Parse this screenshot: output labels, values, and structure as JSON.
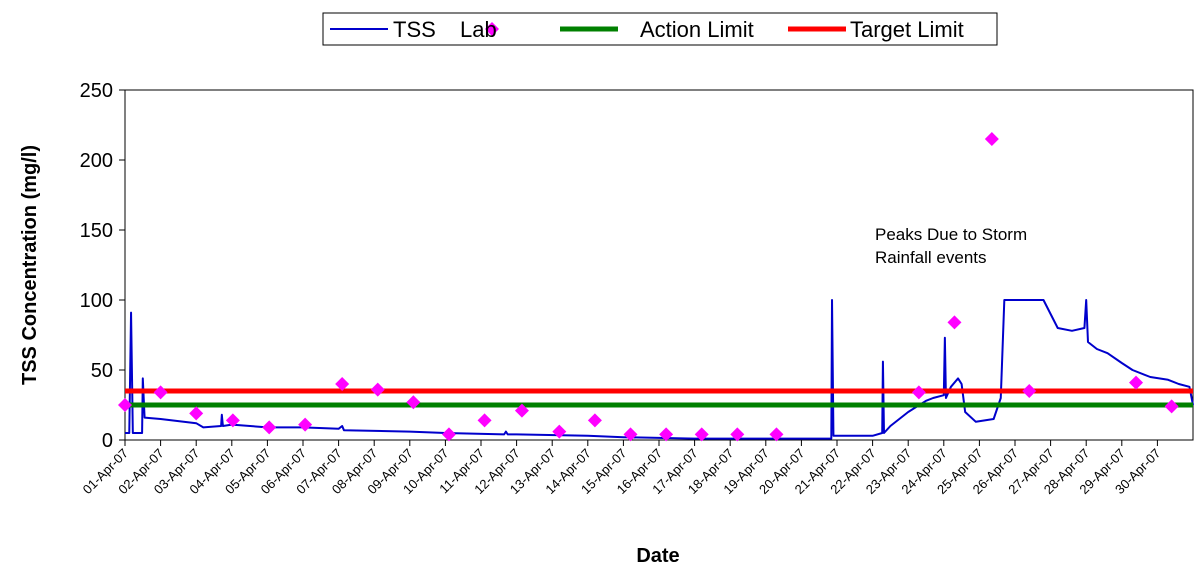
{
  "chart_data": {
    "type": "line",
    "ylabel": "TSS Concentration (mg/l)",
    "xlabel": "Date",
    "annotation": [
      "Peaks Due to Storm",
      "Rainfall events"
    ],
    "xlim": [
      1,
      31
    ],
    "ylim": [
      0,
      250
    ],
    "yticks": [
      0,
      50,
      100,
      150,
      200,
      250
    ],
    "xticks": [
      {
        "value": 1,
        "label": "01-Apr-07"
      },
      {
        "value": 2,
        "label": "02-Apr-07"
      },
      {
        "value": 3,
        "label": "03-Apr-07"
      },
      {
        "value": 4,
        "label": "04-Apr-07"
      },
      {
        "value": 5,
        "label": "05-Apr-07"
      },
      {
        "value": 6,
        "label": "06-Apr-07"
      },
      {
        "value": 7,
        "label": "07-Apr-07"
      },
      {
        "value": 8,
        "label": "08-Apr-07"
      },
      {
        "value": 9,
        "label": "09-Apr-07"
      },
      {
        "value": 10,
        "label": "10-Apr-07"
      },
      {
        "value": 11,
        "label": "11-Apr-07"
      },
      {
        "value": 12,
        "label": "12-Apr-07"
      },
      {
        "value": 13,
        "label": "13-Apr-07"
      },
      {
        "value": 14,
        "label": "14-Apr-07"
      },
      {
        "value": 15,
        "label": "15-Apr-07"
      },
      {
        "value": 16,
        "label": "16-Apr-07"
      },
      {
        "value": 17,
        "label": "17-Apr-07"
      },
      {
        "value": 18,
        "label": "18-Apr-07"
      },
      {
        "value": 19,
        "label": "19-Apr-07"
      },
      {
        "value": 20,
        "label": "20-Apr-07"
      },
      {
        "value": 21,
        "label": "21-Apr-07"
      },
      {
        "value": 22,
        "label": "22-Apr-07"
      },
      {
        "value": 23,
        "label": "23-Apr-07"
      },
      {
        "value": 24,
        "label": "24-Apr-07"
      },
      {
        "value": 25,
        "label": "25-Apr-07"
      },
      {
        "value": 26,
        "label": "26-Apr-07"
      },
      {
        "value": 27,
        "label": "27-Apr-07"
      },
      {
        "value": 28,
        "label": "28-Apr-07"
      },
      {
        "value": 29,
        "label": "29-Apr-07"
      },
      {
        "value": 30,
        "label": "30-Apr-07"
      }
    ],
    "legend": "top",
    "series": [
      {
        "name": "TSS",
        "color": "#0000cc",
        "style": "line",
        "x": [
          1.0,
          1.12,
          1.17,
          1.22,
          1.48,
          1.5,
          1.55,
          2,
          3,
          3.2,
          3.7,
          3.72,
          3.75,
          4,
          5,
          6,
          7,
          7.1,
          7.15,
          9,
          10,
          11.65,
          11.7,
          11.75,
          12,
          14,
          15,
          17,
          20,
          20.84,
          20.86,
          20.9,
          22,
          22.27,
          22.29,
          22.32,
          22.5,
          23,
          23.5,
          23.7,
          24.0,
          24.03,
          24.06,
          24.2,
          24.4,
          24.5,
          24.6,
          24.9,
          25.4,
          25.6,
          25.7,
          26.1,
          26.8,
          27.2,
          27.6,
          27.95,
          28.0,
          28.05,
          28.3,
          28.6,
          29,
          29.3,
          29.8,
          30.3,
          30.6,
          30.9,
          31
        ],
        "values": [
          5,
          5,
          91,
          5,
          5,
          44,
          16,
          15,
          12,
          9,
          10,
          18,
          10,
          11,
          9,
          9,
          8,
          10,
          7,
          6,
          5,
          4,
          6,
          4,
          4,
          3,
          2,
          1,
          1,
          1,
          100,
          3,
          3,
          5,
          56,
          5,
          10,
          20,
          28,
          30,
          32,
          73,
          30,
          38,
          44,
          40,
          20,
          13,
          15,
          30,
          100,
          100,
          100,
          80,
          78,
          80,
          100,
          70,
          65,
          62,
          55,
          50,
          45,
          43,
          40,
          38,
          25
        ]
      },
      {
        "name": "Lab",
        "color": "#ff00ff",
        "style": "marker",
        "x": [
          1.0,
          2.0,
          3.0,
          4.03,
          5.05,
          6.06,
          7.1,
          8.1,
          9.1,
          10.1,
          11.1,
          12.15,
          13.2,
          14.2,
          15.2,
          16.2,
          17.2,
          18.2,
          19.3,
          23.3,
          24.3,
          25.35,
          26.4,
          29.4,
          30.4
        ],
        "values": [
          25,
          34,
          19,
          14,
          9,
          11,
          40,
          36,
          27,
          4,
          14,
          21,
          6,
          14,
          4,
          4,
          4,
          4,
          4,
          34,
          84,
          215,
          35,
          41,
          24
        ]
      },
      {
        "name": "Action Limit",
        "color": "#008000",
        "style": "limit",
        "x": [
          1,
          31
        ],
        "values": [
          25,
          25
        ]
      },
      {
        "name": "Target Limit",
        "color": "#ff0000",
        "style": "limit",
        "x": [
          1,
          31
        ],
        "values": [
          35,
          35
        ]
      }
    ]
  }
}
